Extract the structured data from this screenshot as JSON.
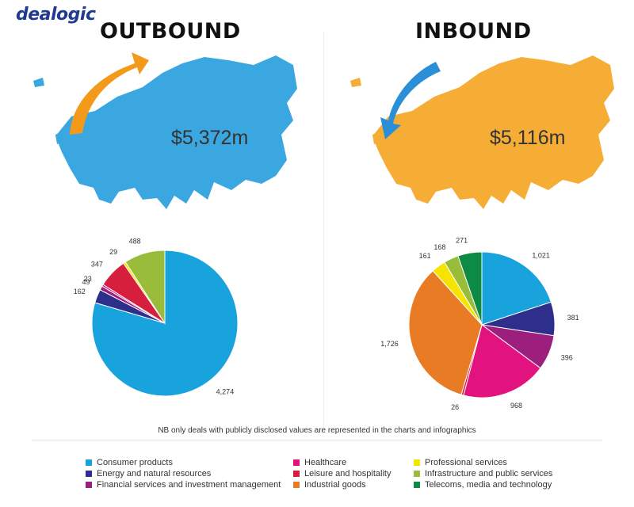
{
  "brand": "dealogic",
  "outbound": {
    "title": "OUTBOUND",
    "amount": "$5,372m"
  },
  "inbound": {
    "title": "INBOUND",
    "amount": "$5,116m"
  },
  "note": "NB only deals with publicly disclosed values are represented in the charts and infographics",
  "colors": {
    "map_outbound": "#3aa7e0",
    "map_inbound": "#f5ad35",
    "arrow_outbound": "#f39a1a",
    "arrow_inbound": "#2b8fd8"
  },
  "chart_data": [
    {
      "type": "pie",
      "title": "OUTBOUND",
      "slices": [
        {
          "label": "Consumer products",
          "value": 4274,
          "display": "4,274",
          "color": "#19a3dc"
        },
        {
          "label": "Energy and natural resources",
          "value": 162,
          "display": "162",
          "color": "#2e2f8a"
        },
        {
          "label": "Financial services and investment management",
          "value": 49,
          "display": "49",
          "color": "#9c1f7e"
        },
        {
          "label": "Healthcare",
          "value": 23,
          "display": "23",
          "color": "#e2137f"
        },
        {
          "label": "Leisure and hospitality",
          "value": 347,
          "display": "347",
          "color": "#d61f3c"
        },
        {
          "label": "Professional services",
          "value": 29,
          "display": "29",
          "color": "#f4e400"
        },
        {
          "label": "Infrastructure and public services",
          "value": 488,
          "display": "488",
          "color": "#99bd3a"
        }
      ]
    },
    {
      "type": "pie",
      "title": "INBOUND",
      "slices": [
        {
          "label": "Consumer products",
          "value": 1021,
          "display": "1,021",
          "color": "#19a3dc"
        },
        {
          "label": "Energy and natural resources",
          "value": 381,
          "display": "381",
          "color": "#2e2f8a"
        },
        {
          "label": "Financial services and investment management",
          "value": 396,
          "display": "396",
          "color": "#9c1f7e"
        },
        {
          "label": "Healthcare",
          "value": 968,
          "display": "968",
          "color": "#e2137f"
        },
        {
          "label": "Leisure and hospitality",
          "value": 26,
          "display": "26",
          "color": "#d61f3c"
        },
        {
          "label": "Industrial goods",
          "value": 1726,
          "display": "1,726",
          "color": "#e97b25"
        },
        {
          "label": "Professional services",
          "value": 161,
          "display": "161",
          "color": "#f4e400"
        },
        {
          "label": "Infrastructure and public services",
          "value": 168,
          "display": "168",
          "color": "#99bd3a"
        },
        {
          "label": "Telecoms, media and technology",
          "value": 271,
          "display": "271",
          "color": "#0d8b44"
        }
      ]
    }
  ],
  "legend": [
    {
      "label": "Consumer products",
      "color": "#19a3dc"
    },
    {
      "label": "Healthcare",
      "color": "#e2137f"
    },
    {
      "label": "Professional services",
      "color": "#f4e400"
    },
    {
      "label": "Energy and natural resources",
      "color": "#2e2f8a"
    },
    {
      "label": "Leisure and hospitality",
      "color": "#d61f3c"
    },
    {
      "label": "Infrastructure and public services",
      "color": "#99bd3a"
    },
    {
      "label": "Financial services and investment management",
      "color": "#9c1f7e"
    },
    {
      "label": "Industrial goods",
      "color": "#e97b25"
    },
    {
      "label": "Telecoms, media and technology",
      "color": "#0d8b44"
    }
  ]
}
